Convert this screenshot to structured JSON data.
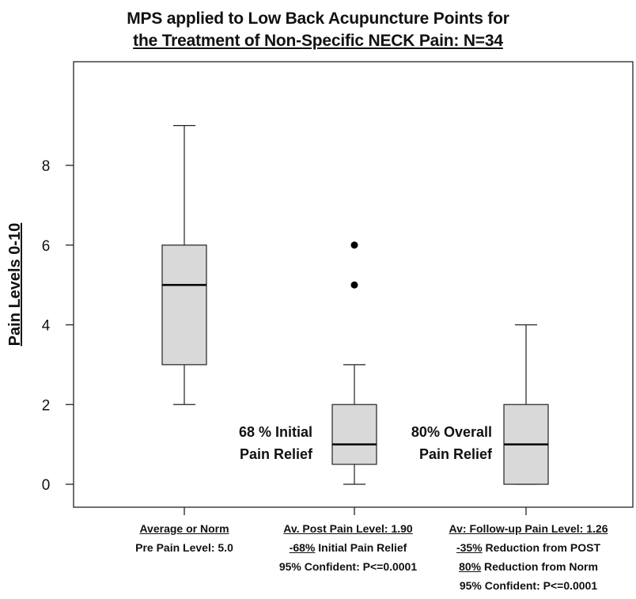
{
  "chart_data": {
    "type": "box",
    "title_line1": "MPS applied to Low Back Acupuncture Points for",
    "title_line2": "the Treatment of Non-Specific NECK Pain: N=34",
    "ylabel": "Pain Levels 0-10",
    "ylim": [
      0,
      10
    ],
    "y_axis_inverted_labels": true,
    "yticks": [
      0,
      2,
      4,
      6,
      8
    ],
    "ytick_labels": [
      "0",
      "2",
      "4",
      "6",
      "8"
    ],
    "grid": false,
    "boxes": [
      {
        "whisker_low": 2,
        "q1": 3,
        "median": 5,
        "q3": 6,
        "whisker_high": 9,
        "outliers": []
      },
      {
        "whisker_low": 0,
        "q1": 0.5,
        "median": 1,
        "q3": 2,
        "whisker_high": 3,
        "outliers": [
          5,
          6
        ]
      },
      {
        "whisker_low": 0,
        "q1": 0,
        "median": 1,
        "q3": 2,
        "whisker_high": 4,
        "outliers": []
      }
    ],
    "annotations": [
      {
        "line1": "68 % Initial",
        "line2": "Pain Relief"
      },
      {
        "line1": "80% Overall",
        "line2": "Pain Relief"
      }
    ],
    "category_labels": [
      {
        "lines": [
          {
            "u": "Average or Norm",
            "rest": ""
          },
          {
            "u": "",
            "rest": "Pre Pain Level: 5.0"
          }
        ]
      },
      {
        "lines": [
          {
            "u": "Av. Post Pain Level: 1.90",
            "rest": ""
          },
          {
            "u": "-68%",
            "rest": " Initial Pain Relief"
          },
          {
            "u": "",
            "rest": "95% Confident: P<=0.0001"
          }
        ]
      },
      {
        "lines": [
          {
            "u": "Av: Follow-up Pain Level: 1.26",
            "rest": ""
          },
          {
            "u": "-35%",
            "rest": " Reduction from POST"
          },
          {
            "u": "80%",
            "rest": " Reduction from Norm"
          },
          {
            "u": "",
            "rest": "95% Confident: P<=0.0001"
          }
        ]
      }
    ]
  },
  "colors": {
    "box_fill": "#d9d9d9",
    "stroke": "#222222",
    "text": "#111111"
  }
}
